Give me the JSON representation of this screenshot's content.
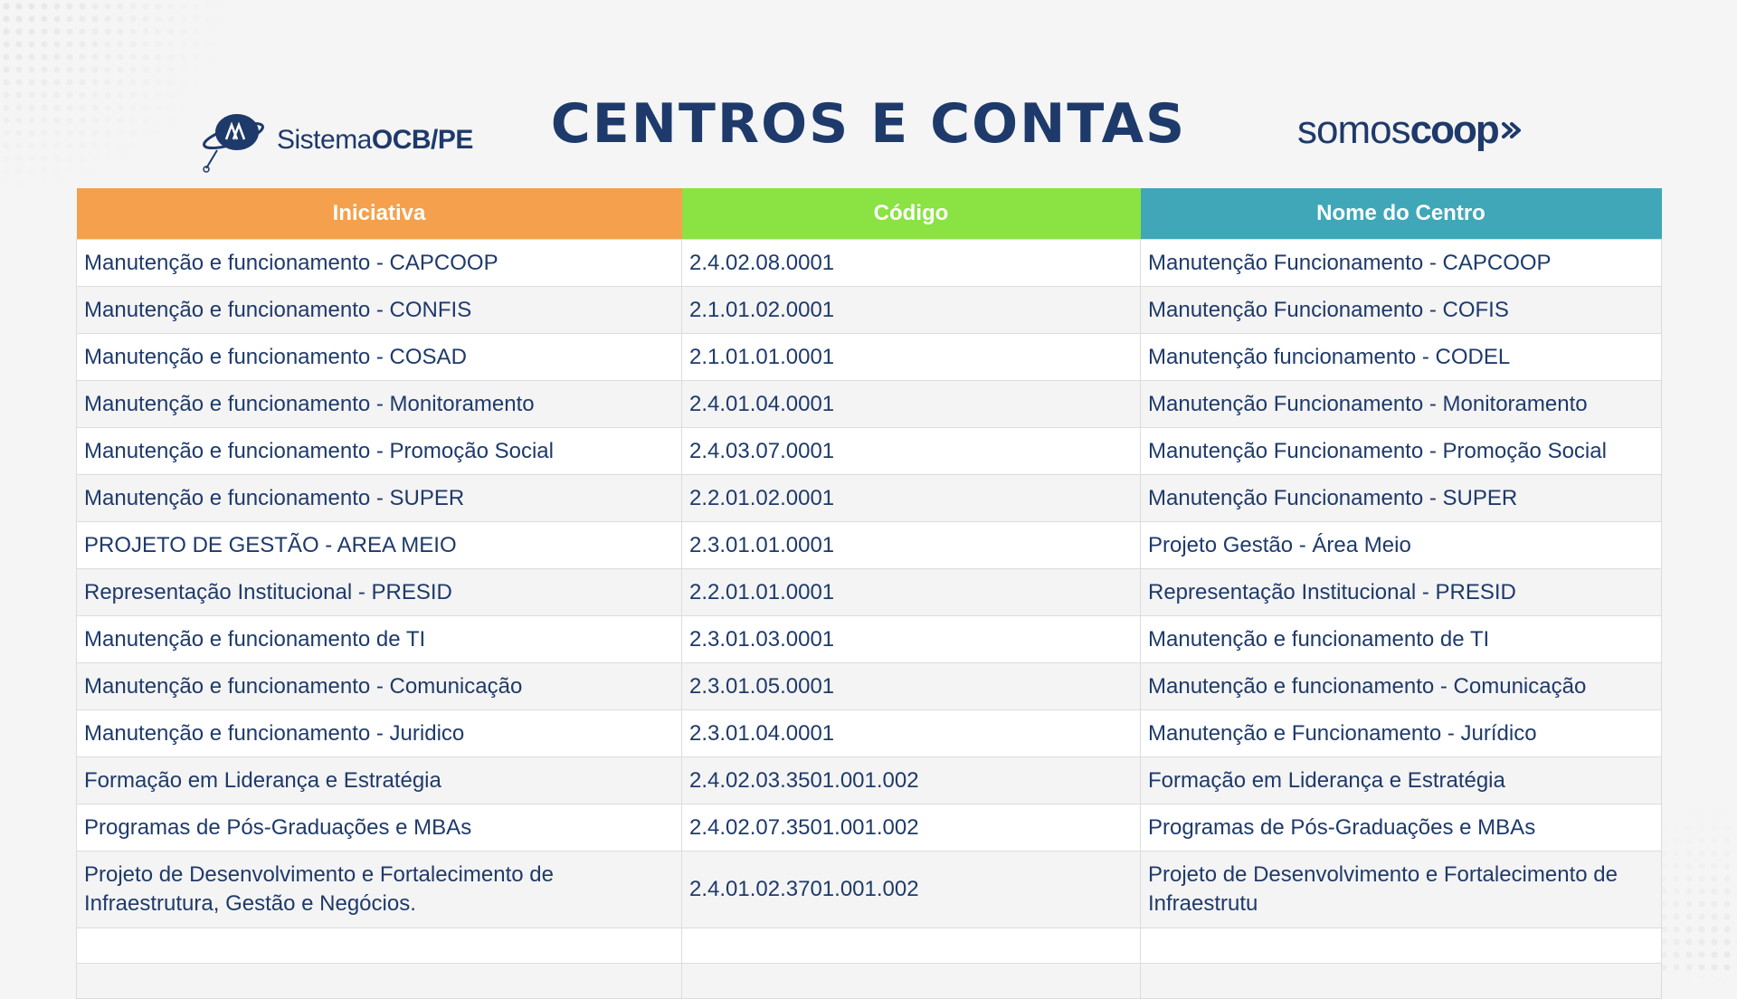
{
  "header": {
    "logo_left": {
      "light": "Sistema",
      "bold": "OCB/PE",
      "icon": "ocb-globe-logo-icon"
    },
    "title": "CENTROS E CONTAS",
    "logo_right": {
      "light": "somos",
      "bold": "coop",
      "icon": "somoscoop-arrow-icon"
    }
  },
  "colors": {
    "title": "#1e3a6b",
    "col_iniciativa": "#f5a04c",
    "col_codigo": "#8ae243",
    "col_nome": "#40a7b8"
  },
  "table": {
    "headers": [
      "Iniciativa",
      "Código",
      "Nome do Centro"
    ],
    "rows": [
      [
        "Manutenção e funcionamento - CAPCOOP",
        "2.4.02.08.0001",
        "Manutenção Funcionamento - CAPCOOP"
      ],
      [
        "Manutenção e funcionamento - CONFIS",
        "2.1.01.02.0001",
        "Manutenção Funcionamento - COFIS"
      ],
      [
        "Manutenção e funcionamento - COSAD",
        "2.1.01.01.0001",
        "Manutenção funcionamento - CODEL"
      ],
      [
        "Manutenção e funcionamento - Monitoramento",
        "2.4.01.04.0001",
        "Manutenção Funcionamento - Monitoramento"
      ],
      [
        "Manutenção e funcionamento - Promoção Social",
        "2.4.03.07.0001",
        "Manutenção Funcionamento - Promoção Social"
      ],
      [
        "Manutenção e funcionamento - SUPER",
        "2.2.01.02.0001",
        "Manutenção Funcionamento - SUPER"
      ],
      [
        "PROJETO DE GESTÃO - AREA MEIO",
        "2.3.01.01.0001",
        "Projeto Gestão - Área Meio"
      ],
      [
        "Representação Institucional - PRESID",
        "2.2.01.01.0001",
        "Representação Institucional - PRESID"
      ],
      [
        "Manutenção e funcionamento de TI",
        "2.3.01.03.0001",
        "Manutenção e funcionamento de TI"
      ],
      [
        "Manutenção e funcionamento - Comunicação",
        "2.3.01.05.0001",
        "Manutenção e funcionamento - Comunicação"
      ],
      [
        "Manutenção e funcionamento - Juridico",
        "2.3.01.04.0001",
        "Manutenção e Funcionamento - Jurídico"
      ],
      [
        "Formação em Liderança e Estratégia",
        "2.4.02.03.3501.001.002",
        "Formação em Liderança e Estratégia"
      ],
      [
        "Programas de Pós-Graduações e MBAs",
        "2.4.02.07.3501.001.002",
        "Programas de Pós-Graduações e MBAs"
      ],
      [
        "Projeto de Desenvolvimento e Fortalecimento de Infraestrutura, Gestão e Negócios.",
        "2.4.01.02.3701.001.002",
        "Projeto de Desenvolvimento e Fortalecimento de Infraestrutu"
      ],
      [
        "",
        "",
        ""
      ],
      [
        "",
        "",
        ""
      ]
    ]
  }
}
